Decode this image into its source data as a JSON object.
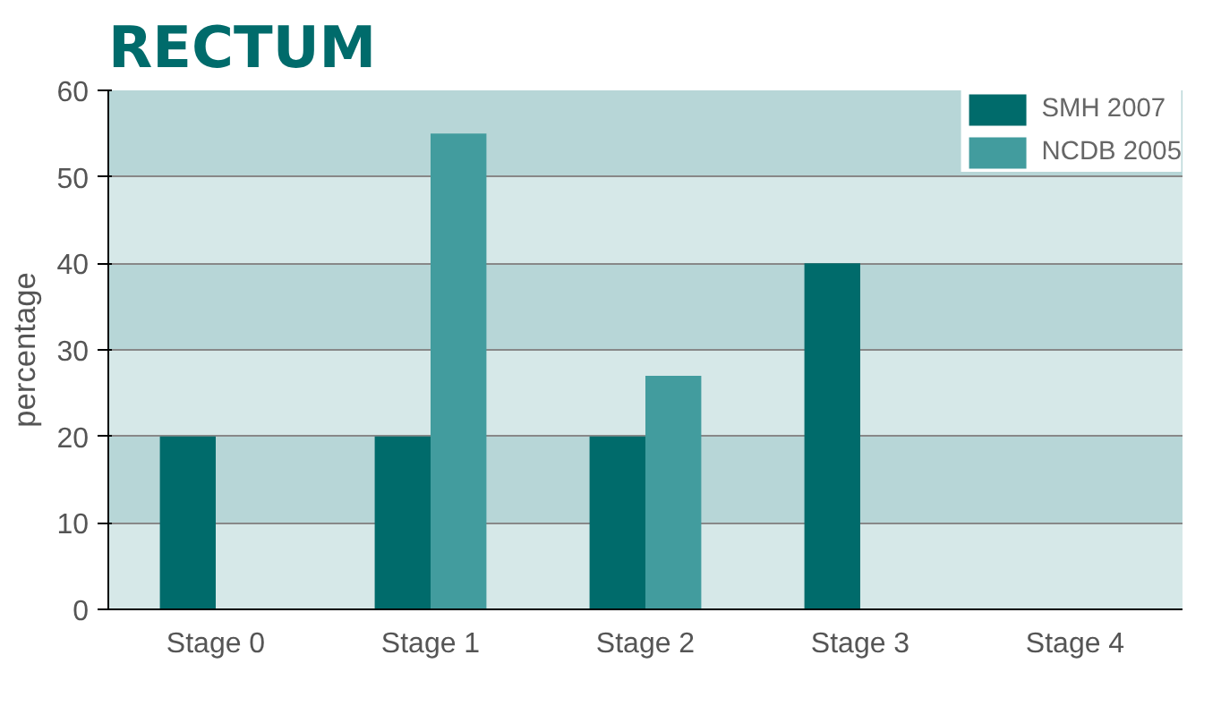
{
  "chart_data": {
    "type": "bar",
    "title": "RECTUM",
    "ylabel": "percentage",
    "categories": [
      "Stage 0",
      "Stage 1",
      "Stage 2",
      "Stage 3",
      "Stage 4"
    ],
    "series": [
      {
        "name": "SMH 2007",
        "color": "#006b6b",
        "values": [
          20,
          20,
          20,
          40,
          null
        ]
      },
      {
        "name": "NCDB 2005",
        "color": "#429c9e",
        "values": [
          null,
          55,
          27,
          null,
          null
        ]
      }
    ],
    "ylim": [
      0,
      60
    ],
    "yticks": [
      0,
      10,
      20,
      30,
      40,
      50,
      60
    ],
    "grid": "y",
    "legend": "top right"
  }
}
